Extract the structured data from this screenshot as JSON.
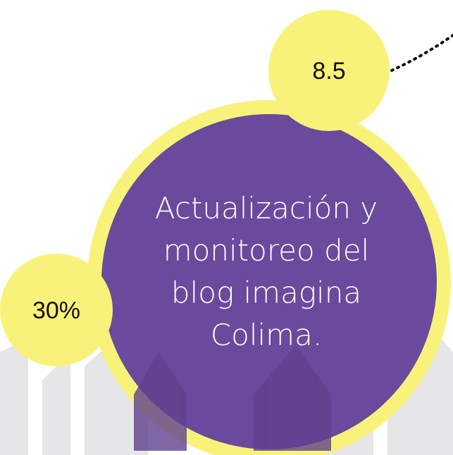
{
  "badges": {
    "top": "8.5",
    "left": "30%"
  },
  "center_text": [
    "Actualización y",
    "monitoreo del",
    "blog imagina",
    "Colima."
  ]
}
